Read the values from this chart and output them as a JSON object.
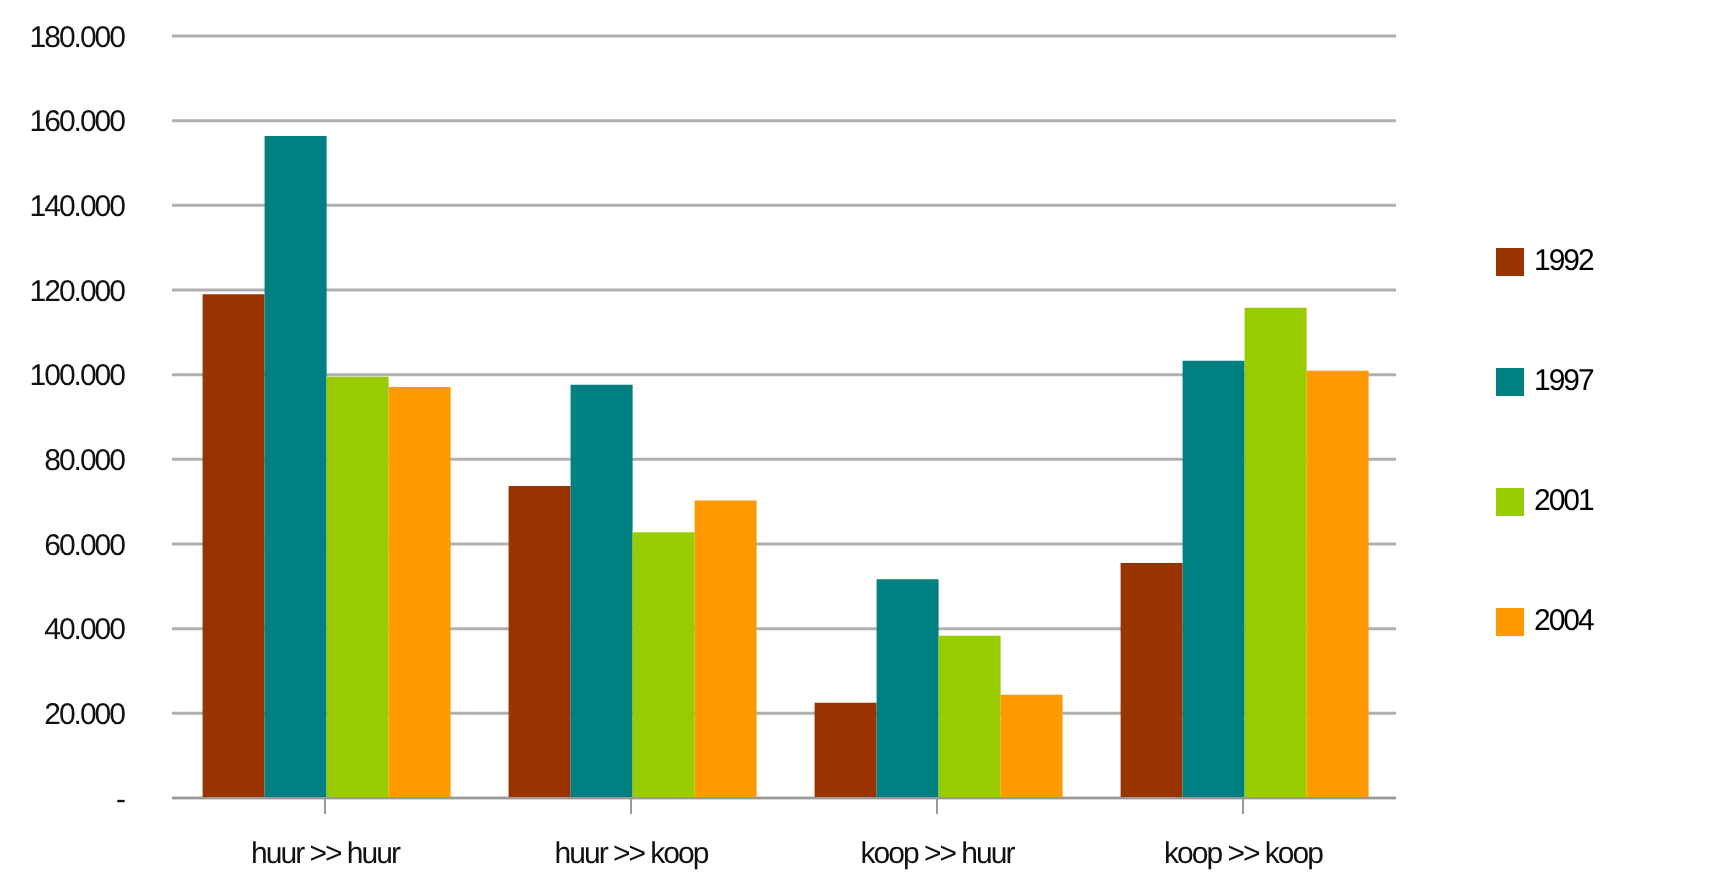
{
  "chart_data": {
    "type": "bar",
    "categories": [
      "huur >> huur",
      "huur >> koop",
      "koop >> huur",
      "koop >> koop"
    ],
    "series": [
      {
        "name": "1992",
        "color": "#993300",
        "values": [
          119000,
          73700,
          22500,
          55500
        ]
      },
      {
        "name": "1997",
        "color": "#008080",
        "values": [
          156400,
          97600,
          51700,
          103300
        ]
      },
      {
        "name": "2001",
        "color": "#99cc00",
        "values": [
          99500,
          62800,
          38300,
          115800
        ]
      },
      {
        "name": "2004",
        "color": "#ff9900",
        "values": [
          97100,
          70300,
          24400,
          100900
        ]
      }
    ],
    "ylim": [
      0,
      180000
    ],
    "yticks": [
      {
        "value": 0,
        "label": "-"
      },
      {
        "value": 20000,
        "label": "20.000"
      },
      {
        "value": 40000,
        "label": "40.000"
      },
      {
        "value": 60000,
        "label": "60.000"
      },
      {
        "value": 80000,
        "label": "80.000"
      },
      {
        "value": 100000,
        "label": "100.000"
      },
      {
        "value": 120000,
        "label": "120.000"
      },
      {
        "value": 140000,
        "label": "140.000"
      },
      {
        "value": 160000,
        "label": "160.000"
      },
      {
        "value": 180000,
        "label": "180.000"
      }
    ],
    "grid": "y",
    "legend": "right"
  }
}
